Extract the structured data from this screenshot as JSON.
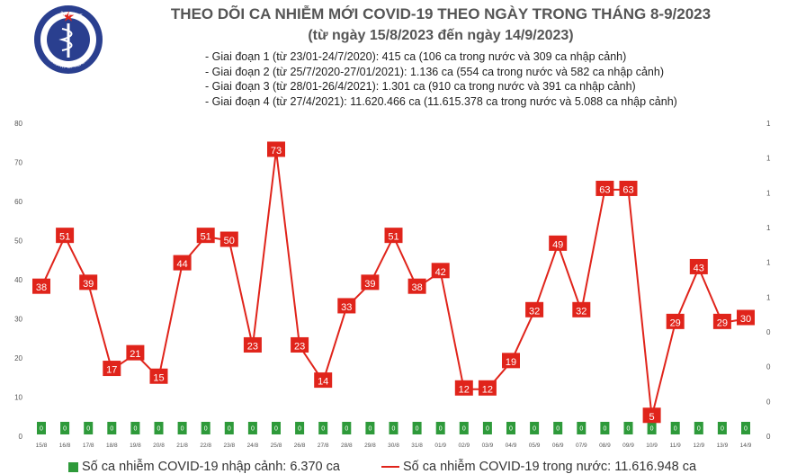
{
  "header": {
    "logo_top_text": "BỘ Y TẾ",
    "logo_bottom_text": "MINISTRY OF HEALTH",
    "title": "THEO DÕI CA NHIỄM MỚI COVID-19 THEO NGÀY TRONG THÁNG 8-9/2023",
    "subtitle": "(từ ngày 15/8/2023 đến ngày 14/9/2023)"
  },
  "stages": [
    "- Giai đoạn 1 (từ 23/01-24/7/2020): 415 ca (106 ca trong nước và 309 ca nhập cảnh)",
    "- Giai đoạn 2 (từ 25/7/2020-27/01/2021): 1.136 ca (554 ca trong nước và 582 ca nhập cảnh)",
    "- Giai đoạn 3 (từ 28/01-26/4/2021): 1.301 ca (910 ca trong nước và 391 ca nhập cảnh)",
    "- Giai đoạn 4 (từ 27/4/2021): 11.620.466 ca (11.615.378 ca trong nước và 5.088 ca nhập cảnh)"
  ],
  "colors": {
    "line": "#e0241b",
    "bar": "#2e9a3a",
    "label_bg": "#e0241b",
    "label_text": "#ffffff",
    "axis_text": "#555555",
    "logo": "#2a3f8f"
  },
  "chart_data": {
    "type": "line",
    "x": [
      "15/8",
      "16/8",
      "17/8",
      "18/8",
      "19/8",
      "20/8",
      "21/8",
      "22/8",
      "23/8",
      "24/8",
      "25/8",
      "26/8",
      "27/8",
      "28/8",
      "29/8",
      "30/8",
      "31/8",
      "01/9",
      "02/9",
      "03/9",
      "04/9",
      "05/9",
      "06/9",
      "07/9",
      "08/9",
      "09/9",
      "10/9",
      "11/9",
      "12/9",
      "13/9",
      "14/9"
    ],
    "series": [
      {
        "name": "Số ca nhiễm COVID-19 trong nước: 11.616.948 ca",
        "kind": "line",
        "values": [
          38,
          51,
          39,
          17,
          21,
          15,
          44,
          51,
          50,
          23,
          73,
          23,
          14,
          33,
          39,
          51,
          38,
          42,
          12,
          12,
          19,
          32,
          49,
          32,
          63,
          63,
          5,
          29,
          43,
          29,
          30
        ]
      },
      {
        "name": "Số ca nhiễm COVID-19 nhập cảnh: 6.370 ca",
        "kind": "bar",
        "values": [
          0,
          0,
          0,
          0,
          0,
          0,
          0,
          0,
          0,
          0,
          0,
          0,
          0,
          0,
          0,
          0,
          0,
          0,
          0,
          0,
          0,
          0,
          0,
          0,
          0,
          0,
          0,
          0,
          0,
          0,
          0
        ],
        "labels": [
          "0",
          "0",
          "0",
          "0",
          "0",
          "0",
          "0",
          "0",
          "0",
          "0",
          "0",
          "0",
          "0",
          "0",
          "0",
          "0",
          "0",
          "0",
          "0",
          "0",
          "0",
          "0",
          "0",
          "0",
          "0",
          "0",
          "0",
          "0",
          "0",
          "0",
          "0"
        ]
      }
    ],
    "y_left_ticks": [
      "0",
      "10",
      "20",
      "30",
      "40",
      "50",
      "60",
      "70",
      "80"
    ],
    "y_right_ticks": [
      "0",
      "0",
      "0",
      "0",
      "1",
      "1",
      "1",
      "1",
      "1",
      "1"
    ],
    "ylim": [
      0,
      80
    ],
    "grid": false,
    "legend_position": "bottom"
  }
}
